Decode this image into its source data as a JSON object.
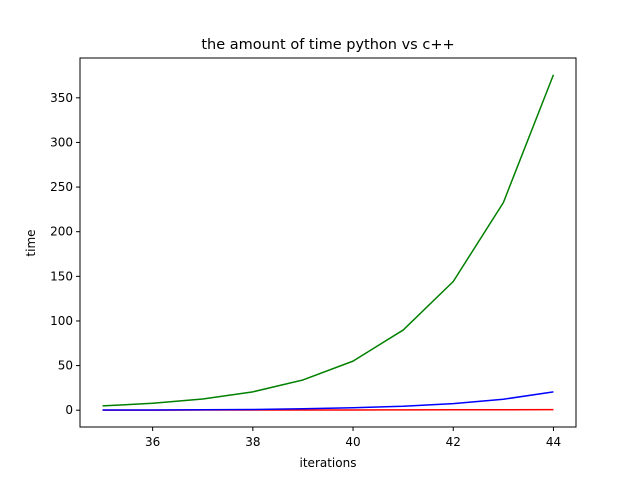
{
  "chart_data": {
    "type": "line",
    "title": "the amount of time  python vs c++",
    "xlabel": "iterations",
    "ylabel": "time",
    "xlim": [
      34.55,
      44.45
    ],
    "ylim": [
      -18.8,
      394.6
    ],
    "xticks": [
      36,
      38,
      40,
      42,
      44
    ],
    "yticks": [
      0,
      50,
      100,
      150,
      200,
      250,
      300,
      350
    ],
    "grid": false,
    "x": [
      35,
      36,
      37,
      38,
      39,
      40,
      41,
      42,
      43,
      44
    ],
    "series": [
      {
        "color": "#008000",
        "values": [
          4.8,
          7.8,
          12.6,
          20.6,
          33.9,
          55.0,
          89.8,
          144.2,
          232.6,
          375.8
        ]
      },
      {
        "color": "#0000ff",
        "values": [
          0.3,
          0.2,
          0.5,
          0.8,
          1.6,
          2.8,
          4.4,
          7.4,
          12.3,
          20.5
        ]
      },
      {
        "color": "#ff0000",
        "values": [
          0.1,
          0.1,
          0.2,
          0.2,
          0.3,
          0.3,
          0.4,
          0.5,
          0.5,
          0.6
        ]
      }
    ]
  }
}
